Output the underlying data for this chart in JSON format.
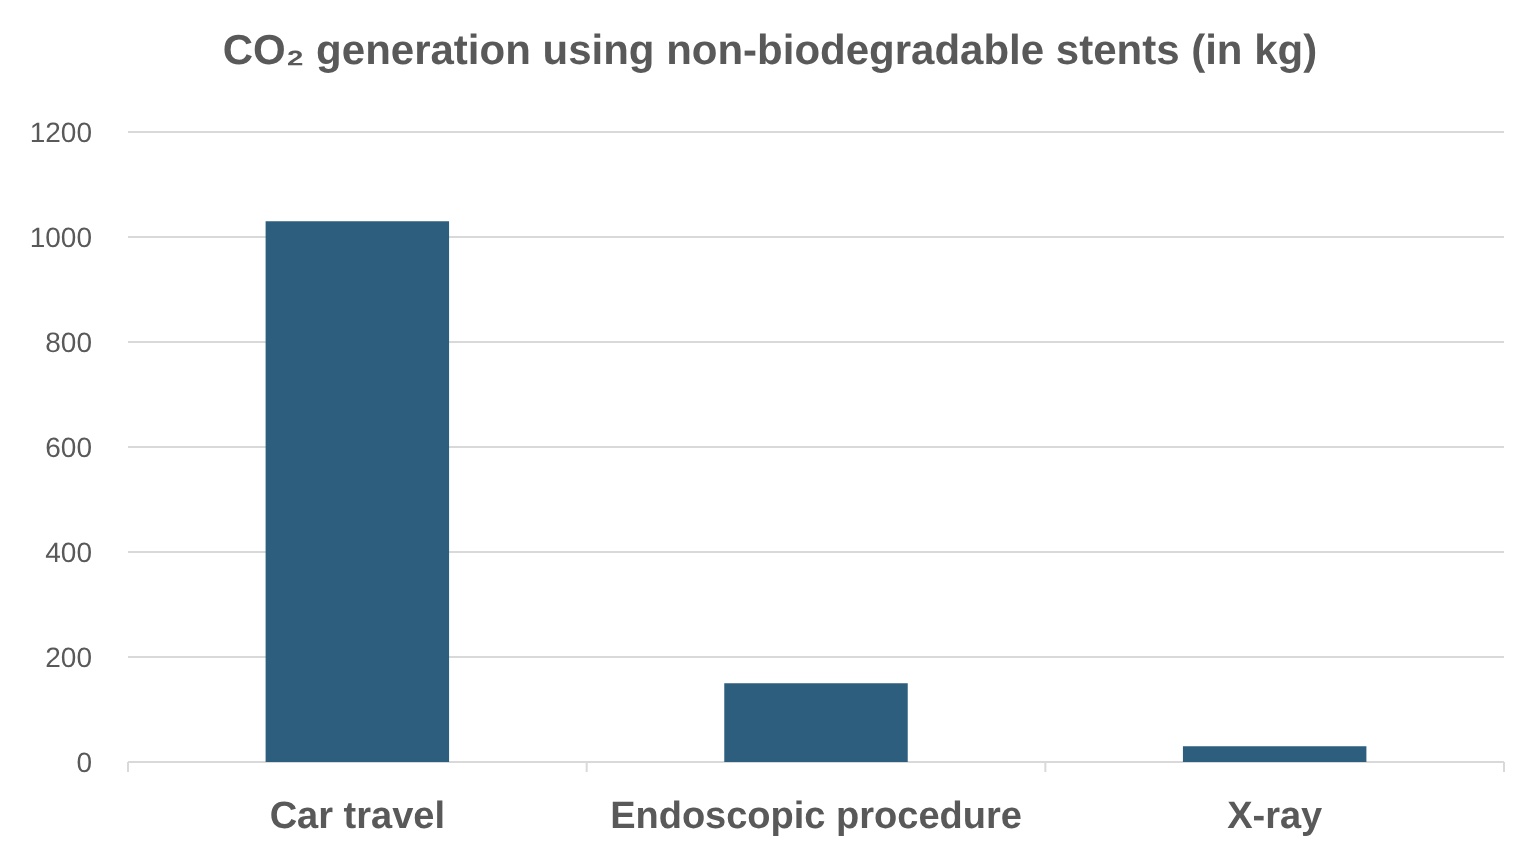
{
  "chart_data": {
    "type": "bar",
    "title": "CO₂ generation using non-biodegradable stents (in kg)",
    "categories": [
      "Car travel",
      "Endoscopic procedure",
      "X-ray"
    ],
    "values": [
      1030,
      150,
      30
    ],
    "color": "#2e5e7e",
    "ylim": [
      0,
      1200
    ],
    "yticks": [
      0,
      200,
      400,
      600,
      800,
      1000,
      1200
    ],
    "grid": "y"
  }
}
